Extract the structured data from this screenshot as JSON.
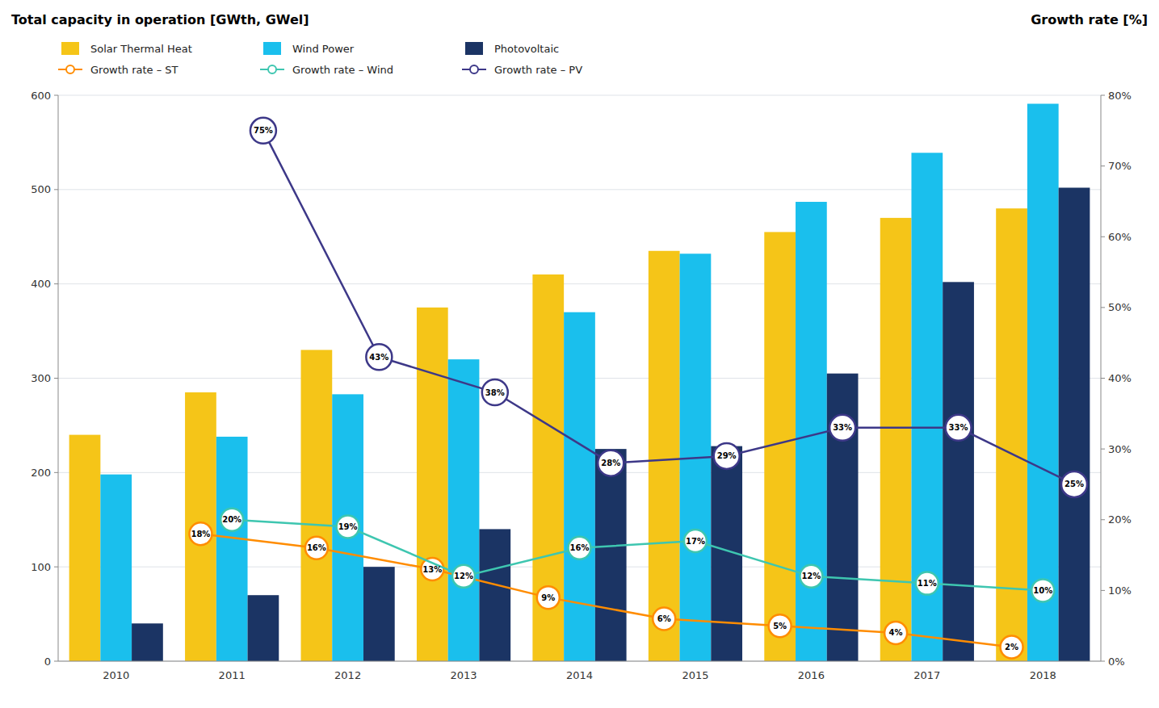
{
  "chart_data": {
    "type": "bar",
    "y_label": "Total capacity in operation [GWth, GWel]",
    "y2_label": "Growth rate [%]",
    "categories": [
      2010,
      2011,
      2012,
      2013,
      2014,
      2015,
      2016,
      2017,
      2018
    ],
    "series": [
      {
        "name": "Solar Thermal Heat",
        "type": "bar",
        "color": "#F5C518",
        "values": [
          240,
          285,
          330,
          375,
          410,
          435,
          455,
          470,
          480
        ]
      },
      {
        "name": "Wind Power",
        "type": "bar",
        "color": "#1ABFED",
        "values": [
          198,
          238,
          283,
          320,
          370,
          432,
          487,
          539,
          591
        ]
      },
      {
        "name": "Photovoltaic",
        "type": "bar",
        "color": "#1B3464",
        "values": [
          40,
          70,
          100,
          140,
          225,
          228,
          305,
          402,
          502
        ]
      },
      {
        "name": "Growth rate – ST",
        "type": "line",
        "axis": "y2",
        "color": "#FF8C00",
        "marker": "circle",
        "line_style": "solid",
        "values": [
          null,
          18,
          16,
          13,
          9,
          6,
          5,
          4,
          2
        ],
        "value_labels": [
          null,
          "18%",
          "16%",
          "13%",
          "9%",
          "6%",
          "5%",
          "4%",
          "2%"
        ]
      },
      {
        "name": "Growth rate – Wind",
        "type": "line",
        "axis": "y2",
        "color": "#3EC6B0",
        "marker": "circle",
        "line_style": "solid",
        "values": [
          null,
          20,
          19,
          12,
          16,
          17,
          12,
          11,
          10
        ],
        "value_labels": [
          null,
          "20%",
          "19%",
          "12%",
          "16%",
          "17%",
          "12%",
          "11%",
          "10%"
        ]
      },
      {
        "name": "Growth rate – PV",
        "type": "line",
        "axis": "y2",
        "color": "#3D3888",
        "marker": "circle",
        "line_style": "solid",
        "values": [
          null,
          75,
          43,
          38,
          28,
          29,
          33,
          33,
          25
        ],
        "value_labels": [
          null,
          "75%",
          "43%",
          "38%",
          "28%",
          "29%",
          "33%",
          "33%",
          "25%"
        ]
      }
    ],
    "ylim": [
      0,
      600
    ],
    "yticks": [
      0,
      100,
      200,
      300,
      400,
      500,
      600
    ],
    "y2lim": [
      0,
      80
    ],
    "y2ticks": [
      {
        "value": 0,
        "label": "0%"
      },
      {
        "value": 10,
        "label": "10%"
      },
      {
        "value": 20,
        "label": "20%"
      },
      {
        "value": 30,
        "label": "30%"
      },
      {
        "value": 40,
        "label": "40%"
      },
      {
        "value": 50,
        "label": "50%"
      },
      {
        "value": 60,
        "label": "60%"
      },
      {
        "value": 70,
        "label": "70%"
      },
      {
        "value": 80,
        "label": "80%"
      }
    ],
    "grid": true,
    "legend": "upper left",
    "data_labels": true
  }
}
